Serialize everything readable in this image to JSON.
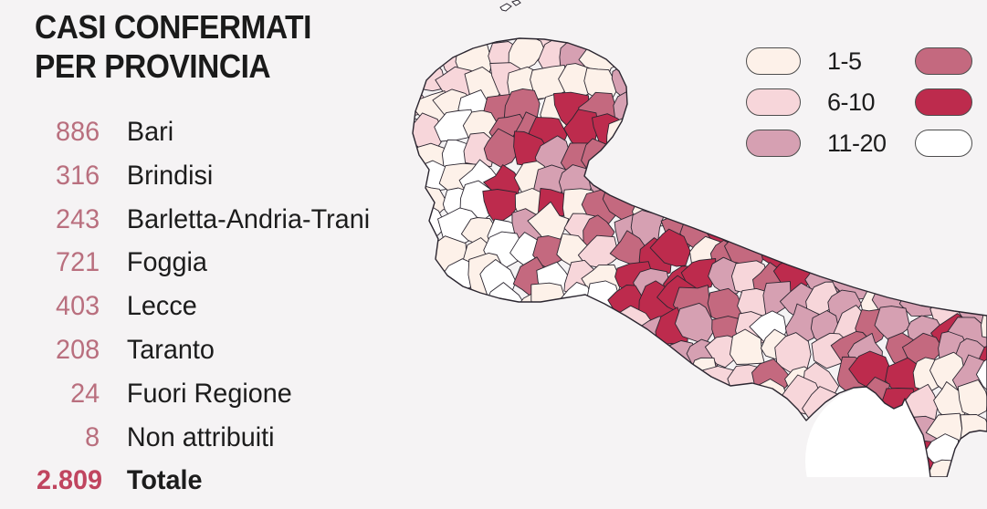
{
  "page": {
    "background": "#f5f3f4"
  },
  "title": {
    "line1": "CASI CONFERMATI",
    "line2": "PER PROVINCIA"
  },
  "provinces": [
    {
      "value": "886",
      "label": "Bari"
    },
    {
      "value": "316",
      "label": "Brindisi"
    },
    {
      "value": "243",
      "label": "Barletta-Andria-Trani"
    },
    {
      "value": "721",
      "label": "Foggia"
    },
    {
      "value": "403",
      "label": "Lecce"
    },
    {
      "value": "208",
      "label": "Taranto"
    },
    {
      "value": "24",
      "label": "Fuori Regione"
    },
    {
      "value": "8",
      "label": "Non attribuiti"
    }
  ],
  "total": {
    "value": "2.809",
    "label": "Totale"
  },
  "value_color": "#b96f7e",
  "total_value_color": "#c0455f",
  "legend": {
    "items": [
      {
        "label": "1-5",
        "color": "#fdf1e9"
      },
      {
        "label": "6-10",
        "color": "#f7d6da"
      },
      {
        "label": "11-20",
        "color": "#d6a0b2"
      }
    ],
    "unlabeled_swatches": [
      {
        "color": "#c4697f"
      },
      {
        "color": "#bd2b4d"
      },
      {
        "color": "#ffffff"
      }
    ],
    "swatch_border": "#4d4d4d"
  },
  "map": {
    "palette": {
      "white": "#ffffff",
      "cream": "#fdf1e9",
      "light": "#f7d6da",
      "dusty": "#d6a0b2",
      "rose": "#c4697f",
      "crimson": "#bd2b4d"
    },
    "stroke": "#2b2630",
    "sea_highlight": "#ffffff"
  }
}
